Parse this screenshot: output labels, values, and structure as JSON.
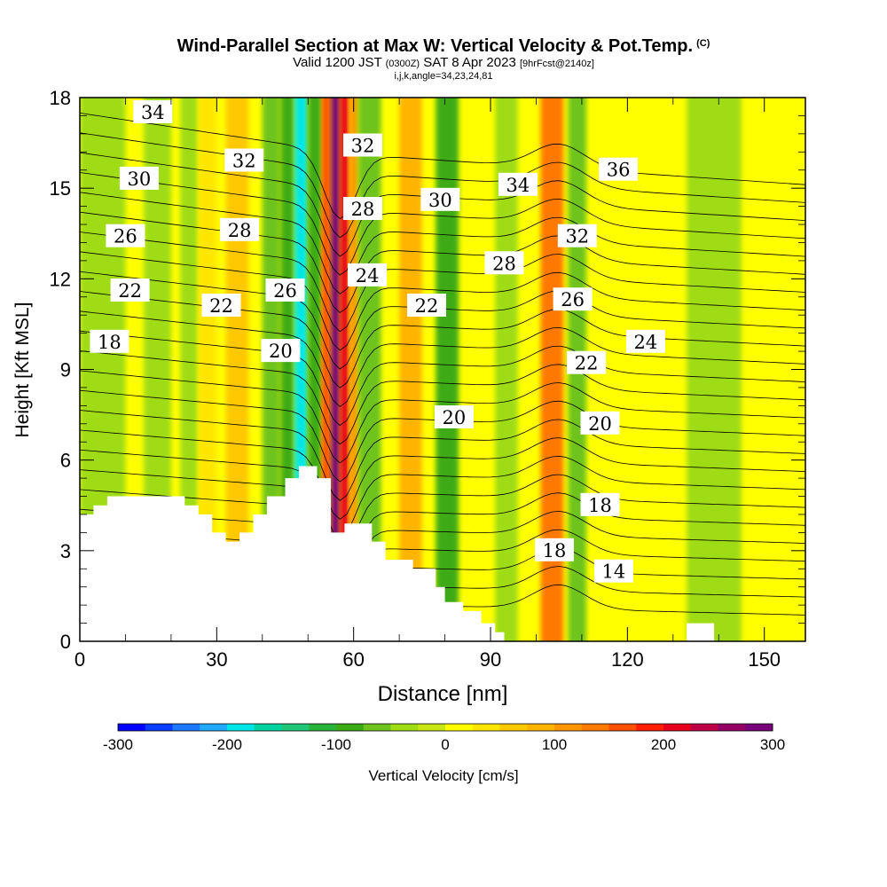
{
  "title": {
    "line1": "Wind-Parallel Section at Max W: Vertical Velocity & Pot.Temp.",
    "copyright": "(C)",
    "line2_main": "Valid 1200 JST",
    "line2_utc": "(0300Z)",
    "line2_date": "SAT 8 Apr 2023",
    "line2_fcst": "[9hrFcst@2140z]",
    "line3": "i,j,k,angle=34,23,24,81"
  },
  "chart_data": {
    "type": "heatmap",
    "title": "Wind-Parallel Section at Max W: Vertical Velocity & Pot.Temp.",
    "xlabel": "Distance [nm]",
    "ylabel": "Height [Kft MSL]",
    "xlim": [
      0,
      159
    ],
    "ylim": [
      0,
      18
    ],
    "x_ticks": [
      0,
      30,
      60,
      90,
      120,
      150
    ],
    "y_ticks": [
      0,
      3,
      6,
      9,
      12,
      15,
      18
    ],
    "colorbar": {
      "label": "Vertical Velocity [cm/s]",
      "min": -300,
      "max": 300,
      "step": 25,
      "tick_values": [
        -300,
        -200,
        -100,
        0,
        100,
        200,
        300
      ],
      "tick_labels": [
        "-300",
        "-200",
        "-100",
        "0",
        "100",
        "200",
        "300"
      ],
      "colors": [
        "#0000ff",
        "#0a3cff",
        "#1e78ff",
        "#1eaaff",
        "#00e6e6",
        "#00d2a0",
        "#1ec878",
        "#28b43c",
        "#3caa14",
        "#6ec31e",
        "#a0dc14",
        "#c8e614",
        "#ffff00",
        "#ffe600",
        "#ffc800",
        "#ffb400",
        "#ff9600",
        "#ff7800",
        "#ff5000",
        "#ff1e00",
        "#e6001e",
        "#be0046",
        "#960064",
        "#780078"
      ]
    },
    "velocity_regions": [
      {
        "x0": 0,
        "x1": 159,
        "value": 15
      },
      {
        "x0": 0,
        "x1": 10,
        "value": -40
      },
      {
        "x0": 14,
        "x1": 20,
        "value": -50
      },
      {
        "x0": 22,
        "x1": 26,
        "value": -30
      },
      {
        "x0": 26,
        "x1": 30,
        "value": 25
      },
      {
        "x0": 32,
        "x1": 37,
        "value": 60
      },
      {
        "x0": 40,
        "x1": 44,
        "value": -60
      },
      {
        "x0": 44,
        "x1": 47,
        "value": -100
      },
      {
        "x0": 47,
        "x1": 50,
        "value": -200
      },
      {
        "x0": 50,
        "x1": 53,
        "value": -100
      },
      {
        "x0": 53,
        "x1": 55,
        "value": 150
      },
      {
        "x0": 55,
        "x1": 57,
        "value": 290
      },
      {
        "x0": 57,
        "x1": 59,
        "value": 220
      },
      {
        "x0": 59,
        "x1": 61,
        "value": 120
      },
      {
        "x0": 61,
        "x1": 66,
        "value": -70
      },
      {
        "x0": 70,
        "x1": 75,
        "value": 80
      },
      {
        "x0": 78,
        "x1": 83,
        "value": -80
      },
      {
        "x0": 91,
        "x1": 96,
        "value": -50
      },
      {
        "x0": 101,
        "x1": 106,
        "value": 140
      },
      {
        "x0": 107,
        "x1": 111,
        "value": -70
      },
      {
        "x0": 133,
        "x1": 145,
        "value": -30
      }
    ],
    "terrain_kft": [
      [
        0,
        4.2
      ],
      [
        3,
        4.2
      ],
      [
        3,
        4.5
      ],
      [
        6,
        4.5
      ],
      [
        6,
        4.8
      ],
      [
        23,
        4.8
      ],
      [
        23,
        4.5
      ],
      [
        26,
        4.5
      ],
      [
        26,
        4.2
      ],
      [
        29,
        4.2
      ],
      [
        29,
        3.6
      ],
      [
        32,
        3.6
      ],
      [
        32,
        3.3
      ],
      [
        35,
        3.3
      ],
      [
        35,
        3.6
      ],
      [
        38,
        3.6
      ],
      [
        38,
        4.2
      ],
      [
        41,
        4.2
      ],
      [
        41,
        4.8
      ],
      [
        45,
        4.8
      ],
      [
        45,
        5.4
      ],
      [
        48,
        5.4
      ],
      [
        48,
        5.8
      ],
      [
        52,
        5.8
      ],
      [
        52,
        5.4
      ],
      [
        55,
        5.4
      ],
      [
        55,
        3.6
      ],
      [
        58,
        3.6
      ],
      [
        58,
        3.9
      ],
      [
        64,
        3.9
      ],
      [
        64,
        3.3
      ],
      [
        67,
        3.3
      ],
      [
        67,
        2.7
      ],
      [
        73,
        2.7
      ],
      [
        73,
        2.4
      ],
      [
        78,
        2.4
      ],
      [
        78,
        1.8
      ],
      [
        80,
        1.8
      ],
      [
        80,
        1.3
      ],
      [
        84,
        1.3
      ],
      [
        84,
        1.0
      ],
      [
        88,
        1.0
      ],
      [
        88,
        0.6
      ],
      [
        91,
        0.6
      ],
      [
        91,
        0.3
      ],
      [
        93,
        0.3
      ],
      [
        93,
        0
      ],
      [
        133,
        0
      ],
      [
        133,
        0.6
      ],
      [
        139,
        0.6
      ],
      [
        139,
        0
      ],
      [
        159,
        0
      ]
    ],
    "theta_contour_labels": [
      {
        "value": "34",
        "x": 16,
        "y": 17.5
      },
      {
        "value": "30",
        "x": 13,
        "y": 15.3
      },
      {
        "value": "26",
        "x": 10,
        "y": 13.4
      },
      {
        "value": "22",
        "x": 11,
        "y": 11.6
      },
      {
        "value": "18",
        "x": 6.5,
        "y": 9.9
      },
      {
        "value": "32",
        "x": 36,
        "y": 15.9
      },
      {
        "value": "28",
        "x": 35,
        "y": 13.6
      },
      {
        "value": "22",
        "x": 31,
        "y": 11.1
      },
      {
        "value": "26",
        "x": 45,
        "y": 11.6
      },
      {
        "value": "20",
        "x": 44,
        "y": 9.6
      },
      {
        "value": "32",
        "x": 62,
        "y": 16.4
      },
      {
        "value": "28",
        "x": 62,
        "y": 14.3
      },
      {
        "value": "24",
        "x": 63,
        "y": 12.1
      },
      {
        "value": "30",
        "x": 79,
        "y": 14.6
      },
      {
        "value": "22",
        "x": 76,
        "y": 11.1
      },
      {
        "value": "20",
        "x": 82,
        "y": 7.4
      },
      {
        "value": "34",
        "x": 96,
        "y": 15.1
      },
      {
        "value": "28",
        "x": 93,
        "y": 12.5
      },
      {
        "value": "36",
        "x": 118,
        "y": 15.6
      },
      {
        "value": "32",
        "x": 109,
        "y": 13.4
      },
      {
        "value": "26",
        "x": 108,
        "y": 11.3
      },
      {
        "value": "24",
        "x": 124,
        "y": 9.9
      },
      {
        "value": "22",
        "x": 111,
        "y": 9.2
      },
      {
        "value": "20",
        "x": 114,
        "y": 7.2
      },
      {
        "value": "18",
        "x": 114,
        "y": 4.5
      },
      {
        "value": "18",
        "x": 104,
        "y": 3.0
      },
      {
        "value": "14",
        "x": 117,
        "y": 2.3
      }
    ]
  }
}
